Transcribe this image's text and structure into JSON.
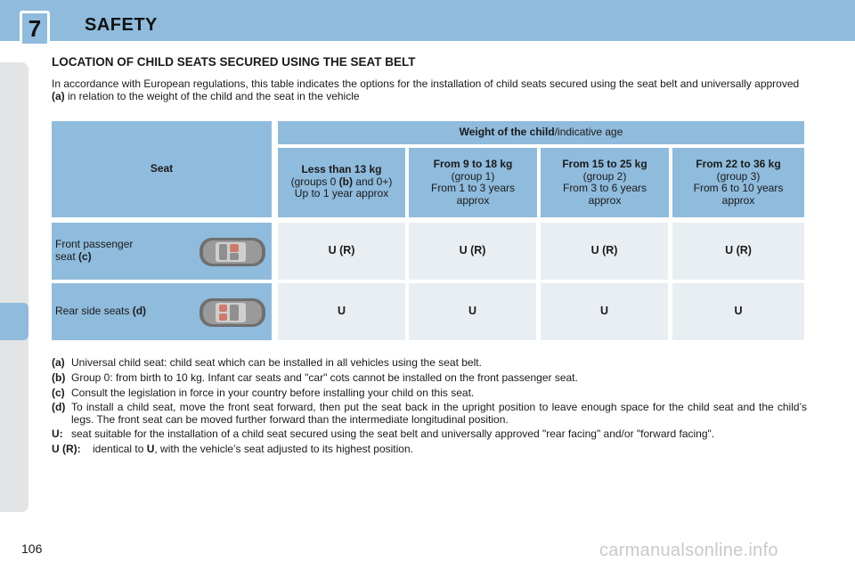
{
  "header": {
    "chapter_number": "7",
    "chapter_title": "SAFETY"
  },
  "section": {
    "title": "LOCATION OF CHILD SEATS SECURED USING THE SEAT BELT",
    "intro_part1": "In accordance with European regulations, this table indicates the options for the installation of child seats secured using the seat belt and universally approved ",
    "intro_ref": "(a)",
    "intro_part2": " in relation to the weight of the child and the seat in the vehicle"
  },
  "table": {
    "seat_header": "Seat",
    "weight_header_bold": "Weight of the child",
    "weight_header_rest": "/indicative age",
    "columns": [
      {
        "title": "Less than 13 kg",
        "line2_pre": "(groups 0 ",
        "line2_ref": "(b)",
        "line2_post": " and 0+)",
        "line3": "Up to 1 year approx"
      },
      {
        "title": "From 9 to 18 kg",
        "line2": "(group 1)",
        "line3": "From 1 to 3 years",
        "line4": "approx"
      },
      {
        "title": "From 15 to 25 kg",
        "line2": "(group 2)",
        "line3": "From 3 to 6 years",
        "line4": "approx"
      },
      {
        "title": "From 22 to 36 kg",
        "line2": "(group 3)",
        "line3": "From 6 to 10 years",
        "line4": "approx"
      }
    ],
    "rows": [
      {
        "label_line1": "Front passenger",
        "label_line2": "seat ",
        "label_ref": "(c)",
        "values": [
          "U (R)",
          "U (R)",
          "U (R)",
          "U (R)"
        ]
      },
      {
        "label_line1": "Rear side seats ",
        "label_ref": "(d)",
        "values": [
          "U",
          "U",
          "U",
          "U"
        ]
      }
    ]
  },
  "notes": [
    {
      "key": "(a)",
      "text": "Universal child seat: child seat which can be installed in all vehicles using the seat belt."
    },
    {
      "key": "(b)",
      "text": "Group 0: from birth to 10 kg. Infant car seats and \"car\" cots cannot be installed on the front passenger seat."
    },
    {
      "key": "(c)",
      "text": "Consult the legislation in force in your country before installing your child on this seat."
    },
    {
      "key": "(d)",
      "text": "To install a child seat, move the front seat forward, then put the seat back in the upright position to leave enough space for the child seat and the child’s legs. The front seat can be moved further forward than the intermediate longitudinal position."
    },
    {
      "key": "U:",
      "text": "seat suitable for the installation of a child seat secured using the seat belt and universally approved \"rear facing\" and/or \"forward facing\"."
    },
    {
      "key": "U (R):",
      "text_pre": "identical to ",
      "text_bold": "U",
      "text_post": ", with the vehicle’s seat adjusted to its highest position."
    }
  ],
  "page_number": "106",
  "watermark": "carmanualsonline.info",
  "colors": {
    "accent_blue": "#8fbbdc",
    "light_cell": "#e9eef3"
  }
}
